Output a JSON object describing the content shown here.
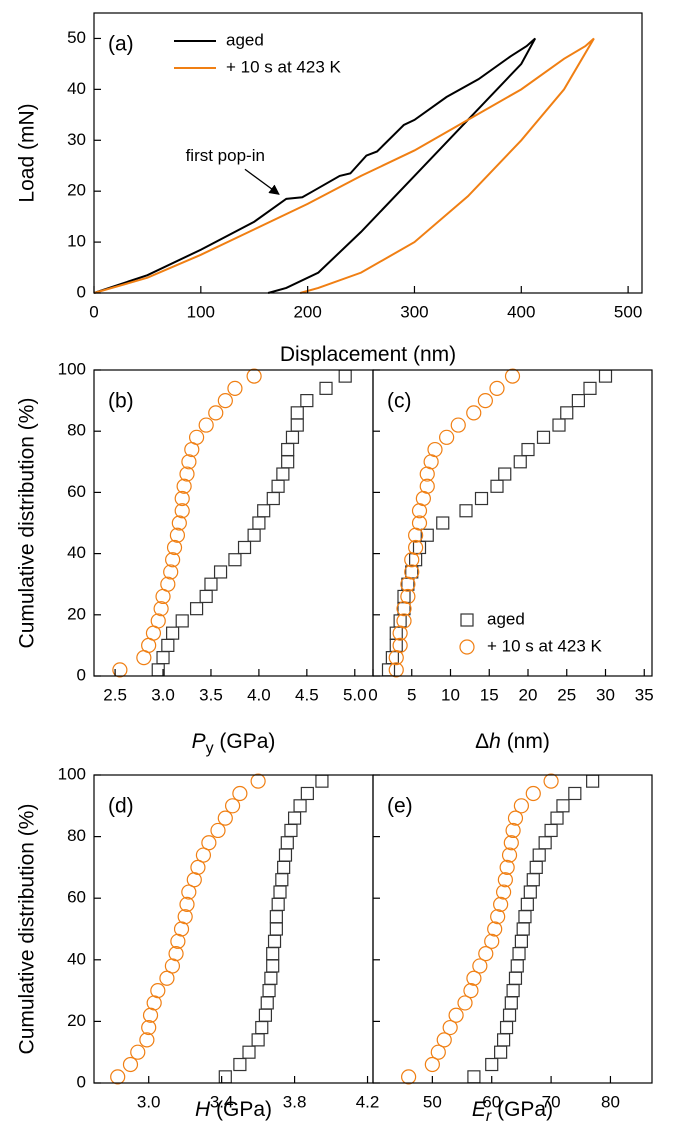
{
  "chart_data": [
    {
      "type": "line",
      "panel_label": "(a)",
      "ylabel": "Load (mN)",
      "xlabel_parts": [
        "Displacement (nm)"
      ],
      "xlabel_styles": [
        "normal"
      ],
      "xlim": [
        0,
        513
      ],
      "ylim": [
        0,
        55
      ],
      "xticks": [
        0,
        100,
        200,
        300,
        400,
        500
      ],
      "yticks": [
        0,
        10,
        20,
        30,
        40,
        50
      ],
      "show_yticklabels": true,
      "legend": "upper left",
      "annotation": {
        "text": "first pop-in",
        "x": 175,
        "y": 19
      },
      "series": [
        {
          "name": "aged",
          "color": "#000000",
          "x": [
            0,
            50,
            100,
            150,
            180,
            195,
            205,
            230,
            240,
            255,
            265,
            290,
            300,
            330,
            360,
            390,
            405,
            413,
            400,
            350,
            300,
            250,
            210,
            180,
            163
          ],
          "y": [
            0,
            3.5,
            8.5,
            14,
            18.5,
            18.8,
            20,
            23,
            23.5,
            27,
            27.8,
            33,
            34,
            38.5,
            42,
            46.5,
            48.5,
            50,
            45,
            34,
            23,
            12,
            4,
            1,
            0
          ]
        },
        {
          "name": "+ 10 s at 423 K",
          "color": "#f07f13",
          "x": [
            0,
            50,
            100,
            150,
            200,
            250,
            300,
            350,
            400,
            440,
            460,
            468,
            440,
            400,
            350,
            300,
            250,
            210,
            193
          ],
          "y": [
            0,
            3,
            7.5,
            12.5,
            17.5,
            23,
            28,
            34,
            40,
            46,
            48.5,
            50,
            40,
            30,
            19,
            10,
            4,
            1,
            0
          ]
        }
      ]
    },
    {
      "type": "scatter",
      "panel_label": "(b)",
      "ylabel": "Cumulative distribution (%)",
      "xlabel_parts": [
        "P",
        "y",
        " (GPa)"
      ],
      "xlabel_styles": [
        "italic",
        "sub",
        "normal"
      ],
      "xlim": [
        2.28,
        5.19
      ],
      "ylim": [
        0,
        100
      ],
      "xticks": [
        2.5,
        {
          "value": 3,
          "label": "3.0"
        },
        3.5,
        {
          "value": 4,
          "label": "4.0"
        },
        4.5,
        {
          "value": 5,
          "label": "5.0"
        }
      ],
      "yticks": [
        0,
        20,
        40,
        60,
        80,
        100
      ],
      "show_yticklabels": true,
      "series": [
        {
          "name": "aged",
          "color": "#333333",
          "marker": "square",
          "x": [
            2.95,
            3.0,
            3.05,
            3.1,
            3.2,
            3.35,
            3.45,
            3.5,
            3.6,
            3.75,
            3.85,
            3.95,
            4.0,
            4.05,
            4.15,
            4.2,
            4.25,
            4.3,
            4.3,
            4.35,
            4.4,
            4.4,
            4.5,
            4.7,
            4.9
          ],
          "y": [
            2,
            6,
            10,
            14,
            18,
            22,
            26,
            30,
            34,
            38,
            42,
            46,
            50,
            54,
            58,
            62,
            66,
            70,
            74,
            78,
            82,
            86,
            90,
            94,
            98
          ]
        },
        {
          "name": "+ 10 s at 423 K",
          "color": "#f07f13",
          "marker": "circle",
          "x": [
            2.55,
            2.8,
            2.85,
            2.9,
            2.95,
            2.98,
            3.0,
            3.05,
            3.08,
            3.1,
            3.12,
            3.15,
            3.17,
            3.2,
            3.2,
            3.22,
            3.25,
            3.27,
            3.3,
            3.35,
            3.45,
            3.55,
            3.65,
            3.75,
            3.95
          ],
          "y": [
            2,
            6,
            10,
            14,
            18,
            22,
            26,
            30,
            34,
            38,
            42,
            46,
            50,
            54,
            58,
            62,
            66,
            70,
            74,
            78,
            82,
            86,
            90,
            94,
            98
          ]
        }
      ]
    },
    {
      "type": "scatter",
      "panel_label": "(c)",
      "xlabel_parts": [
        "Δ",
        "h",
        " (nm)"
      ],
      "xlabel_styles": [
        "normal",
        "italic",
        "normal"
      ],
      "xlim": [
        0,
        36
      ],
      "ylim": [
        0,
        100
      ],
      "xticks": [
        0,
        5,
        10,
        15,
        20,
        25,
        30,
        35
      ],
      "yticks": [
        0,
        20,
        40,
        60,
        80,
        100
      ],
      "show_yticklabels": false,
      "legend": "lower right",
      "series": [
        {
          "name": "aged",
          "color": "#333333",
          "marker": "square",
          "x": [
            2,
            2.5,
            3,
            3,
            3.5,
            4,
            4,
            4.5,
            5,
            5.5,
            6,
            7,
            9,
            12,
            14,
            16,
            17,
            19,
            20,
            22,
            24,
            25,
            26.5,
            28,
            30
          ],
          "y": [
            2,
            6,
            10,
            14,
            18,
            22,
            26,
            30,
            34,
            38,
            42,
            46,
            50,
            54,
            58,
            62,
            66,
            70,
            74,
            78,
            82,
            86,
            90,
            94,
            98
          ]
        },
        {
          "name": "+ 10 s at 423 K",
          "color": "#f07f13",
          "marker": "circle",
          "x": [
            3,
            3,
            3.5,
            3.5,
            4,
            4,
            4.5,
            4.5,
            5,
            5,
            5.5,
            5.5,
            6,
            6,
            6.5,
            7,
            7,
            7.5,
            8,
            9.5,
            11,
            13,
            14.5,
            16,
            18
          ],
          "y": [
            2,
            6,
            10,
            14,
            18,
            22,
            26,
            30,
            34,
            38,
            42,
            46,
            50,
            54,
            58,
            62,
            66,
            70,
            74,
            78,
            82,
            86,
            90,
            94,
            98
          ]
        }
      ]
    },
    {
      "type": "scatter",
      "panel_label": "(d)",
      "ylabel": "Cumulative distribution (%)",
      "xlabel_parts": [
        "H",
        " (GPa)"
      ],
      "xlabel_styles": [
        "italic",
        "normal"
      ],
      "xlim": [
        2.7,
        4.23
      ],
      "ylim": [
        0,
        100
      ],
      "xticks": [
        {
          "value": 3,
          "label": "3.0"
        },
        3.4,
        3.8,
        4.2
      ],
      "yticks": [
        0,
        20,
        40,
        60,
        80,
        100
      ],
      "show_yticklabels": true,
      "series": [
        {
          "name": "aged",
          "color": "#333333",
          "marker": "square",
          "x": [
            3.42,
            3.5,
            3.55,
            3.6,
            3.62,
            3.64,
            3.65,
            3.66,
            3.67,
            3.68,
            3.68,
            3.69,
            3.7,
            3.7,
            3.71,
            3.72,
            3.73,
            3.74,
            3.75,
            3.76,
            3.78,
            3.8,
            3.83,
            3.87,
            3.95
          ],
          "y": [
            2,
            6,
            10,
            14,
            18,
            22,
            26,
            30,
            34,
            38,
            42,
            46,
            50,
            54,
            58,
            62,
            66,
            70,
            74,
            78,
            82,
            86,
            90,
            94,
            98
          ]
        },
        {
          "name": "+ 10 s at 423 K",
          "color": "#f07f13",
          "marker": "circle",
          "x": [
            2.83,
            2.9,
            2.94,
            2.99,
            3.0,
            3.01,
            3.03,
            3.05,
            3.1,
            3.13,
            3.15,
            3.16,
            3.18,
            3.2,
            3.21,
            3.22,
            3.25,
            3.27,
            3.3,
            3.33,
            3.38,
            3.42,
            3.46,
            3.5,
            3.6
          ],
          "y": [
            2,
            6,
            10,
            14,
            18,
            22,
            26,
            30,
            34,
            38,
            42,
            46,
            50,
            54,
            58,
            62,
            66,
            70,
            74,
            78,
            82,
            86,
            90,
            94,
            98
          ]
        }
      ]
    },
    {
      "type": "scatter",
      "panel_label": "(e)",
      "xlabel_parts": [
        "E",
        "r",
        " (GPa)"
      ],
      "xlabel_styles": [
        "italic",
        "italic-sub",
        "normal"
      ],
      "xlim": [
        40,
        87
      ],
      "ylim": [
        0,
        100
      ],
      "xticks": [
        50,
        60,
        70,
        80
      ],
      "yticks": [
        0,
        20,
        40,
        60,
        80,
        100
      ],
      "show_yticklabels": false,
      "series": [
        {
          "name": "aged",
          "color": "#333333",
          "marker": "square",
          "x": [
            57,
            60,
            61.5,
            62,
            62.5,
            63,
            63.3,
            63.6,
            64,
            64.3,
            64.6,
            65,
            65.3,
            65.6,
            66,
            66.5,
            67,
            67.5,
            68,
            69,
            70,
            71,
            72,
            74,
            77
          ],
          "y": [
            2,
            6,
            10,
            14,
            18,
            22,
            26,
            30,
            34,
            38,
            42,
            46,
            50,
            54,
            58,
            62,
            66,
            70,
            74,
            78,
            82,
            86,
            90,
            94,
            98
          ]
        },
        {
          "name": "+ 10 s at 423 K",
          "color": "#f07f13",
          "marker": "circle",
          "x": [
            46,
            50,
            51,
            52,
            53,
            54,
            55.5,
            56.5,
            57,
            58,
            59,
            60,
            60.5,
            61,
            61.5,
            62,
            62.3,
            62.6,
            63,
            63.3,
            63.6,
            64,
            65,
            67,
            70
          ],
          "y": [
            2,
            6,
            10,
            14,
            18,
            22,
            26,
            30,
            34,
            38,
            42,
            46,
            50,
            54,
            58,
            62,
            66,
            70,
            74,
            78,
            82,
            86,
            90,
            94,
            98
          ]
        }
      ]
    }
  ]
}
